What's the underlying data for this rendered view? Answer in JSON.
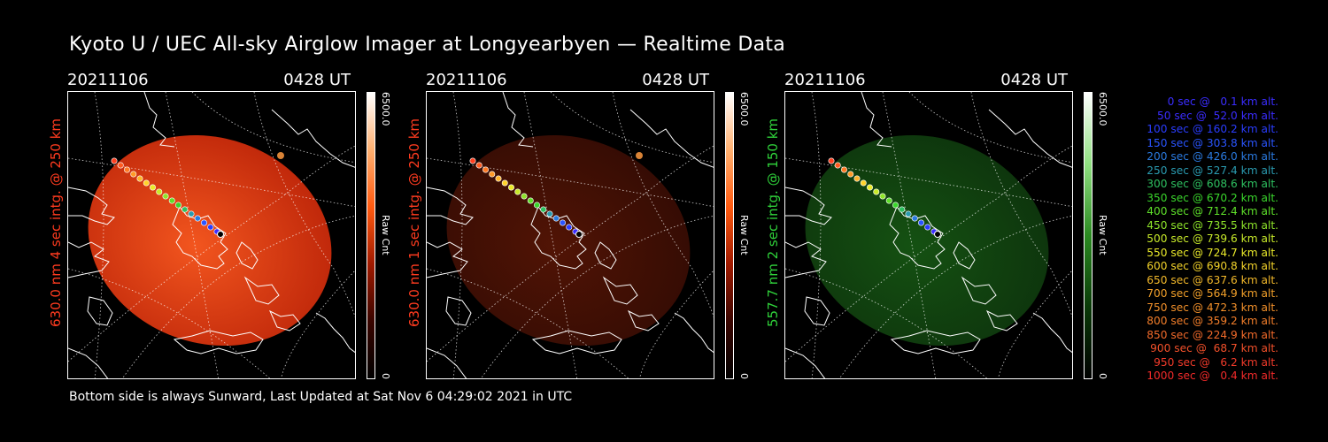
{
  "title": "Kyoto U / UEC All-sky Airglow Imager at Longyearbyen — Realtime Data",
  "footer": "Bottom side is always Sunward, Last Updated at Sat Nov  6 04:29:02 2021 in UTC",
  "panels": [
    {
      "date": "20211106",
      "time": "0428 UT",
      "label": "630.0 nm 4 sec intg. @ 250 km",
      "label_color": "#ff3b1f",
      "cb_max": "6500.0",
      "cb_unit": "Raw Cnt",
      "cb_min": "0",
      "channel": "red",
      "brightness": "high",
      "color": "#c8280a",
      "color2": "#ff5a20"
    },
    {
      "date": "20211106",
      "time": "0428 UT",
      "label": "630.0 nm 1 sec intg. @ 250 km",
      "label_color": "#ff3b1f",
      "cb_max": "6500.0",
      "cb_unit": "Raw Cnt",
      "cb_min": "0",
      "channel": "red",
      "brightness": "low",
      "color": "#3a0d04",
      "color2": "#5a1606"
    },
    {
      "date": "20211106",
      "time": "0428 UT",
      "label": "557.7 nm 2 sec intg. @ 150 km",
      "label_color": "#2fd13a",
      "cb_max": "6500.0",
      "cb_unit": "Raw Cnt",
      "cb_min": "0",
      "channel": "green",
      "brightness": "low",
      "color": "#0f3a0e",
      "color2": "#175a14"
    }
  ],
  "legend": [
    {
      "text": "0 sec @   0.1 km alt.",
      "color": "#3a2cff"
    },
    {
      "text": "50 sec @  52.0 km alt.",
      "color": "#3a2cff"
    },
    {
      "text": "100 sec @ 160.2 km alt.",
      "color": "#2a3dff"
    },
    {
      "text": "150 sec @ 303.8 km alt.",
      "color": "#2a55ff"
    },
    {
      "text": "200 sec @ 426.0 km alt.",
      "color": "#2a7ae0"
    },
    {
      "text": "250 sec @ 527.4 km alt.",
      "color": "#2a9ab0"
    },
    {
      "text": "300 sec @ 608.6 km alt.",
      "color": "#2ec060"
    },
    {
      "text": "350 sec @ 670.2 km alt.",
      "color": "#3ad62c"
    },
    {
      "text": "400 sec @ 712.4 km alt.",
      "color": "#5ee02a"
    },
    {
      "text": "450 sec @ 735.5 km alt.",
      "color": "#8ee42a"
    },
    {
      "text": "500 sec @ 739.6 km alt.",
      "color": "#c8ea2a"
    },
    {
      "text": "550 sec @ 724.7 km alt.",
      "color": "#eaea2a"
    },
    {
      "text": "600 sec @ 690.8 km alt.",
      "color": "#f2d22a"
    },
    {
      "text": "650 sec @ 637.6 km alt.",
      "color": "#f2b82a"
    },
    {
      "text": "700 sec @ 564.9 km alt.",
      "color": "#f2a02a"
    },
    {
      "text": "750 sec @ 472.3 km alt.",
      "color": "#f2902a"
    },
    {
      "text": "800 sec @ 359.2 km alt.",
      "color": "#f27e2a"
    },
    {
      "text": "850 sec @ 224.9 km alt.",
      "color": "#f26a2a"
    },
    {
      "text": "900 sec @  68.7 km alt.",
      "color": "#f2502a"
    },
    {
      "text": "950 sec @   6.2 km alt.",
      "color": "#f23a2a"
    },
    {
      "text": "1000 sec @   0.4 km alt.",
      "color": "#f22a2a"
    }
  ]
}
